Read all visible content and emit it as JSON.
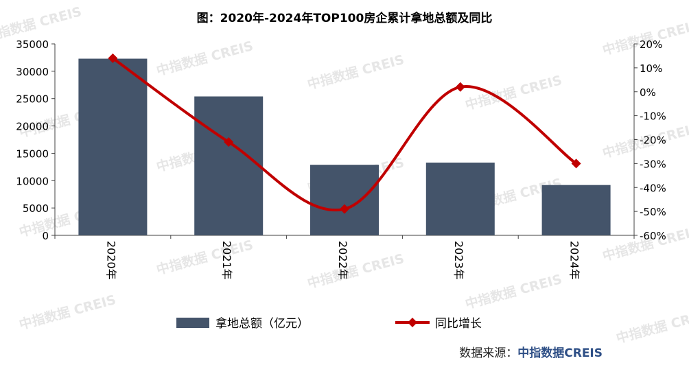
{
  "chart_data": {
    "type": "bar",
    "title": "图：2020年-2024年TOP100房企累计拿地总额及同比",
    "categories": [
      "2020年",
      "2021年",
      "2022年",
      "2023年",
      "2024年"
    ],
    "series": [
      {
        "name": "拿地总额（亿元）",
        "type": "bar",
        "axis": "left",
        "color": "#44546a",
        "values": [
          32300,
          25400,
          12900,
          13300,
          9200
        ]
      },
      {
        "name": "同比增长",
        "type": "line",
        "axis": "right",
        "color": "#c00000",
        "values": [
          14,
          -21,
          -49,
          2,
          -30
        ]
      }
    ],
    "y_left": {
      "min": 0,
      "max": 35000,
      "ticks": [
        "0",
        "5000",
        "10000",
        "15000",
        "20000",
        "25000",
        "30000",
        "35000"
      ]
    },
    "y_right": {
      "min": -60,
      "max": 20,
      "ticks": [
        "-60%",
        "-50%",
        "-40%",
        "-30%",
        "-20%",
        "-10%",
        "0%",
        "10%",
        "20%"
      ]
    },
    "legend_position": "bottom",
    "grid": false
  },
  "watermark": "中指数据 CREIS",
  "source": {
    "label": "数据来源：",
    "brand": "中指数据CREIS"
  }
}
